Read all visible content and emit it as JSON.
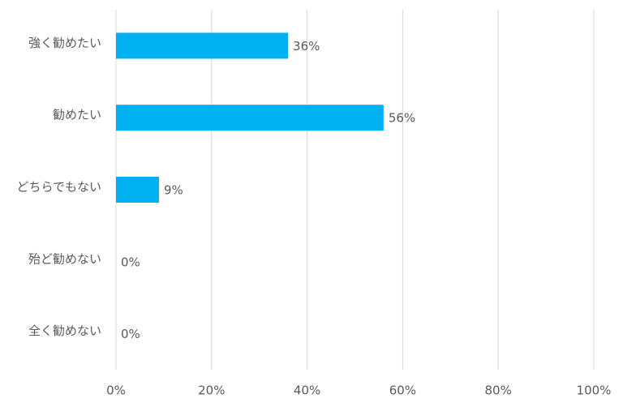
{
  "chart_data": {
    "type": "bar",
    "orientation": "horizontal",
    "categories": [
      "強く勧めたい",
      "勧めたい",
      "どちらでもない",
      "殆ど勧めない",
      "全く勧めない"
    ],
    "values": [
      36,
      56,
      9,
      0,
      0
    ],
    "value_labels": [
      "36%",
      "56%",
      "9%",
      "0%",
      "0%"
    ],
    "color": "#00b0f0",
    "xlim": [
      0,
      100
    ],
    "xticks": [
      {
        "value": 0,
        "label": "0%"
      },
      {
        "value": 20,
        "label": "20%"
      },
      {
        "value": 40,
        "label": "40%"
      },
      {
        "value": 60,
        "label": "60%"
      },
      {
        "value": 80,
        "label": "80%"
      },
      {
        "value": 100,
        "label": "100%"
      }
    ],
    "grid": true
  }
}
